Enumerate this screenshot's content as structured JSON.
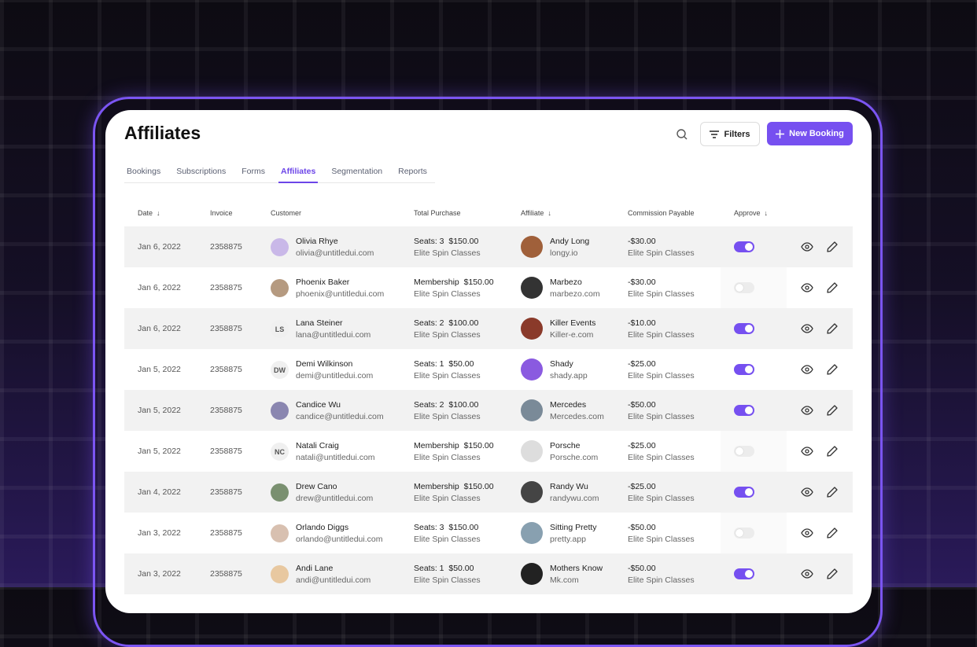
{
  "header": {
    "title": "Affiliates",
    "filters_label": "Filters",
    "new_booking_label": "New Booking"
  },
  "tabs": [
    {
      "label": "Bookings"
    },
    {
      "label": "Subscriptions"
    },
    {
      "label": "Forms"
    },
    {
      "label": "Affiliates",
      "active": true
    },
    {
      "label": "Segmentation"
    },
    {
      "label": "Reports"
    }
  ],
  "columns": {
    "date": "Date",
    "invoice": "Invoice",
    "customer": "Customer",
    "total": "Total Purchase",
    "affiliate": "Affiliate",
    "commission": "Commission Payable",
    "approve": "Approve"
  },
  "accent": "#7650f0",
  "rows": [
    {
      "date": "Jan 6, 2022",
      "invoice": "2358875",
      "customer": "Olivia Rhye",
      "email": "olivia@untitledui.com",
      "initials": "",
      "purchase": "Seats: 3  $150.00",
      "purchase_sub": "Elite Spin Classes",
      "affiliate": "Andy Long",
      "affiliate_site": "longy.io",
      "commission": "-$30.00",
      "commission_sub": "Elite Spin Classes",
      "approved": true
    },
    {
      "date": "Jan 6, 2022",
      "invoice": "2358875",
      "customer": "Phoenix Baker",
      "email": "phoenix@untitledui.com",
      "initials": "",
      "purchase": "Membership  $150.00",
      "purchase_sub": "Elite Spin Classes",
      "affiliate": "Marbezo",
      "affiliate_site": "marbezo.com",
      "commission": "-$30.00",
      "commission_sub": "Elite Spin Classes",
      "approved": false
    },
    {
      "date": "Jan 6, 2022",
      "invoice": "2358875",
      "customer": "Lana Steiner",
      "email": "lana@untitledui.com",
      "initials": "LS",
      "purchase": "Seats: 2  $100.00",
      "purchase_sub": "Elite Spin Classes",
      "affiliate": "Killer Events",
      "affiliate_site": "Killer-e.com",
      "commission": "-$10.00",
      "commission_sub": "Elite Spin Classes",
      "approved": true
    },
    {
      "date": "Jan 5, 2022",
      "invoice": "2358875",
      "customer": "Demi Wilkinson",
      "email": "demi@untitledui.com",
      "initials": "DW",
      "purchase": "Seats: 1  $50.00",
      "purchase_sub": "Elite Spin Classes",
      "affiliate": "Shady",
      "affiliate_site": "shady.app",
      "commission": "-$25.00",
      "commission_sub": "Elite Spin Classes",
      "approved": true
    },
    {
      "date": "Jan 5, 2022",
      "invoice": "2358875",
      "customer": "Candice Wu",
      "email": "candice@untitledui.com",
      "initials": "",
      "purchase": "Seats: 2  $100.00",
      "purchase_sub": "Elite Spin Classes",
      "affiliate": "Mercedes",
      "affiliate_site": "Mercedes.com",
      "commission": "-$50.00",
      "commission_sub": "Elite Spin Classes",
      "approved": true
    },
    {
      "date": "Jan 5, 2022",
      "invoice": "2358875",
      "customer": "Natali Craig",
      "email": "natali@untitledui.com",
      "initials": "NC",
      "purchase": "Membership  $150.00",
      "purchase_sub": "Elite Spin Classes",
      "affiliate": "Porsche",
      "affiliate_site": "Porsche.com",
      "commission": "-$25.00",
      "commission_sub": "Elite Spin Classes",
      "approved": false
    },
    {
      "date": "Jan 4, 2022",
      "invoice": "2358875",
      "customer": "Drew Cano",
      "email": "drew@untitledui.com",
      "initials": "",
      "purchase": "Membership  $150.00",
      "purchase_sub": "Elite Spin Classes",
      "affiliate": "Randy Wu",
      "affiliate_site": "randywu.com",
      "commission": "-$25.00",
      "commission_sub": "Elite Spin Classes",
      "approved": true
    },
    {
      "date": "Jan 3, 2022",
      "invoice": "2358875",
      "customer": "Orlando Diggs",
      "email": "orlando@untitledui.com",
      "initials": "",
      "purchase": "Seats: 3  $150.00",
      "purchase_sub": "Elite Spin Classes",
      "affiliate": "Sitting Pretty",
      "affiliate_site": "pretty.app",
      "commission": "-$50.00",
      "commission_sub": "Elite Spin Classes",
      "approved": false
    },
    {
      "date": "Jan 3, 2022",
      "invoice": "2358875",
      "customer": "Andi Lane",
      "email": "andi@untitledui.com",
      "initials": "",
      "purchase": "Seats: 1  $50.00",
      "purchase_sub": "Elite Spin Classes",
      "affiliate": "Mothers Know",
      "affiliate_site": "Mk.com",
      "commission": "-$50.00",
      "commission_sub": "Elite Spin Classes",
      "approved": true
    }
  ]
}
